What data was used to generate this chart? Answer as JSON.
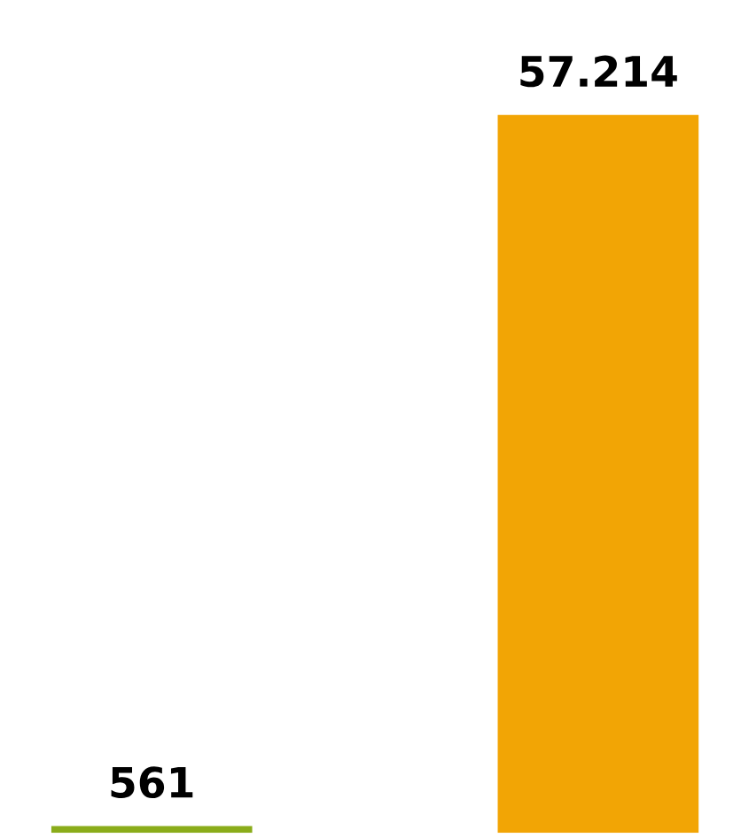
{
  "chart_data": {
    "type": "bar",
    "categories": [
      null,
      null
    ],
    "values": [
      561,
      57214
    ],
    "colors": [
      "#8aac1a",
      "#f2a505"
    ],
    "value_labels": [
      "561",
      "57.214"
    ]
  }
}
